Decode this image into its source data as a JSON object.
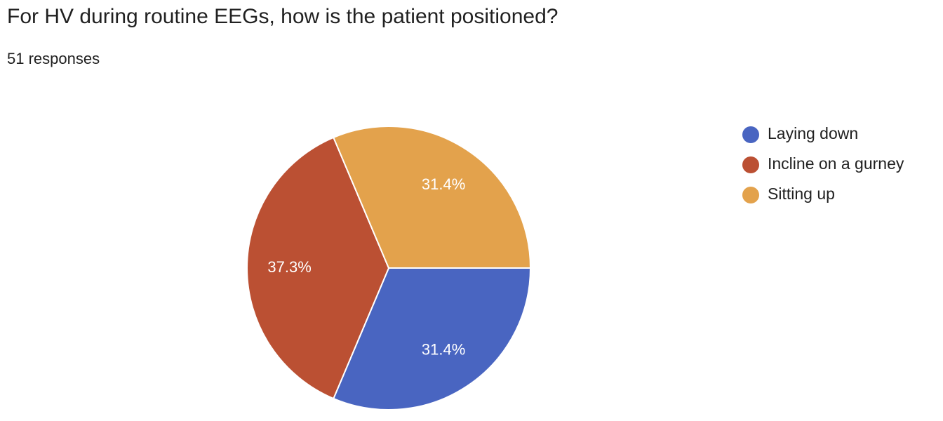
{
  "chart_data": {
    "type": "pie",
    "title": "For HV during routine EEGs, how is the patient positioned?",
    "subtitle": "51 responses",
    "categories": [
      "Laying down",
      "Incline on a gurney",
      "Sitting up"
    ],
    "values": [
      31.4,
      37.3,
      31.4
    ],
    "value_labels": [
      "31.4%",
      "37.3%",
      "31.4%"
    ],
    "colors": [
      "#4965c1",
      "#bb5033",
      "#e3a24c"
    ],
    "legend": "right"
  }
}
